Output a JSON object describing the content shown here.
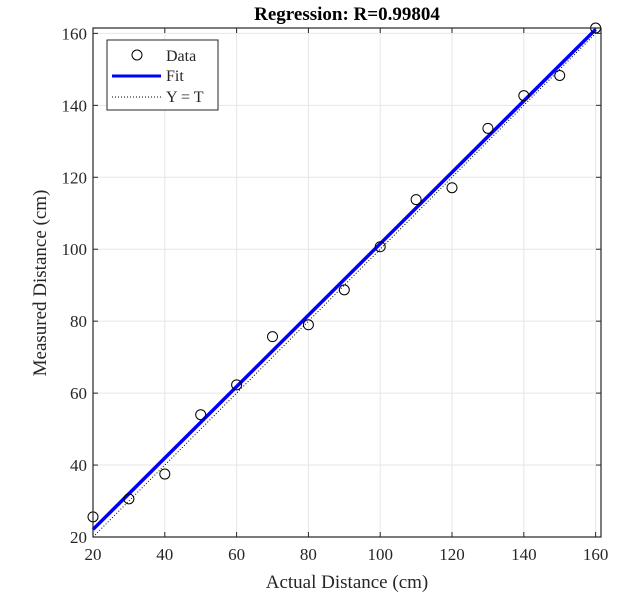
{
  "chart_data": {
    "type": "scatter",
    "title": "Regression: R=0.99804",
    "xlabel": "Actual Distance (cm)",
    "ylabel": "Measured Distance (cm)",
    "xlim": [
      20,
      161.5
    ],
    "ylim": [
      20,
      161.5
    ],
    "xticks": [
      20,
      40,
      60,
      80,
      100,
      120,
      140,
      160
    ],
    "yticks": [
      20,
      40,
      60,
      80,
      100,
      120,
      140,
      160
    ],
    "grid": true,
    "legend_position": "top-left",
    "series": [
      {
        "name": "Data",
        "kind": "markers",
        "marker": "circle-open",
        "color": "#000000",
        "x": [
          20,
          30,
          40,
          50,
          60,
          70,
          80,
          90,
          100,
          110,
          120,
          130,
          140,
          150,
          160
        ],
        "y": [
          25.6,
          30.6,
          37.5,
          54.0,
          62.3,
          75.7,
          79.0,
          88.7,
          100.7,
          113.8,
          117.1,
          133.6,
          142.7,
          148.3,
          161.5
        ]
      },
      {
        "name": "Fit",
        "kind": "line",
        "color": "#0000ff",
        "x": [
          20,
          160
        ],
        "y": [
          22.1,
          161.1
        ]
      },
      {
        "name": "Y = T",
        "kind": "dotted-line",
        "color": "#000000",
        "x": [
          20,
          160
        ],
        "y": [
          20,
          160
        ]
      }
    ]
  }
}
